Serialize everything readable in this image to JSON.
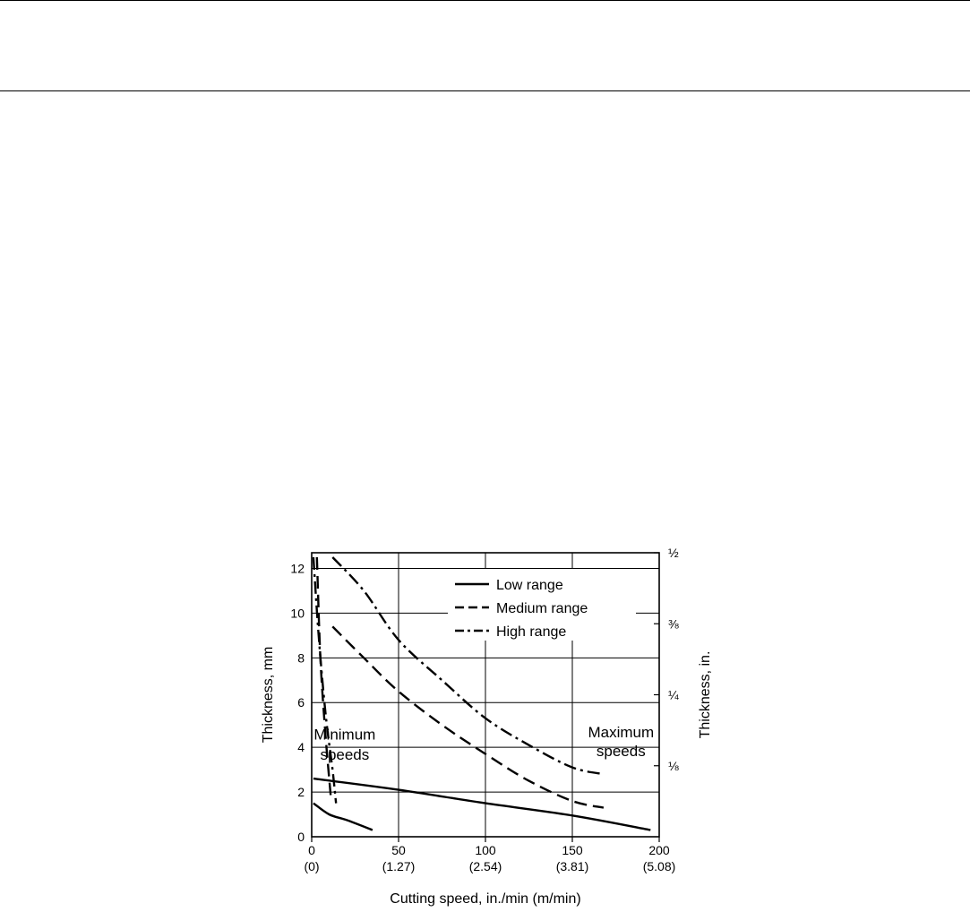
{
  "chart_data": {
    "type": "line",
    "title": "",
    "xlabel": "Cutting speed, in./min (m/min)",
    "ylabel": "Thickness, mm",
    "y2label": "Thickness, in.",
    "xlim": [
      0,
      200
    ],
    "ylim": [
      0,
      12.7
    ],
    "grid": true,
    "legend_position": "top-right",
    "x_ticks": [
      {
        "value": 0,
        "label": "0",
        "sublabel": "(0)"
      },
      {
        "value": 50,
        "label": "50",
        "sublabel": "(1.27)"
      },
      {
        "value": 100,
        "label": "100",
        "sublabel": "(2.54)"
      },
      {
        "value": 150,
        "label": "150",
        "sublabel": "(3.81)"
      },
      {
        "value": 200,
        "label": "200",
        "sublabel": "(5.08)"
      }
    ],
    "y_ticks": [
      {
        "value": 0,
        "label": "0"
      },
      {
        "value": 2,
        "label": "2"
      },
      {
        "value": 4,
        "label": "4"
      },
      {
        "value": 6,
        "label": "6"
      },
      {
        "value": 8,
        "label": "8"
      },
      {
        "value": 10,
        "label": "10"
      },
      {
        "value": 12,
        "label": "12"
      }
    ],
    "y2_ticks": [
      {
        "value": 3.175,
        "label": "⅛"
      },
      {
        "value": 6.35,
        "label": "¼"
      },
      {
        "value": 9.525,
        "label": "⅜"
      },
      {
        "value": 12.7,
        "label": "½"
      }
    ],
    "series": [
      {
        "name": "Low range",
        "dash": "solid",
        "curves": [
          {
            "role": "minimum",
            "points": [
              [
                1,
                1.5
              ],
              [
                10,
                1.0
              ],
              [
                20,
                0.75
              ],
              [
                35,
                0.3
              ]
            ]
          },
          {
            "role": "maximum",
            "points": [
              [
                1,
                2.6
              ],
              [
                50,
                2.1
              ],
              [
                100,
                1.5
              ],
              [
                150,
                0.95
              ],
              [
                195,
                0.3
              ]
            ]
          }
        ]
      },
      {
        "name": "Medium range",
        "dash": "dashed",
        "curves": [
          {
            "role": "minimum",
            "points": [
              [
                3,
                12.5
              ],
              [
                5,
                8.0
              ],
              [
                8,
                4.5
              ],
              [
                11,
                1.8
              ]
            ]
          },
          {
            "role": "maximum",
            "points": [
              [
                12,
                9.4
              ],
              [
                30,
                8.0
              ],
              [
                50,
                6.5
              ],
              [
                75,
                5.0
              ],
              [
                100,
                3.7
              ],
              [
                125,
                2.5
              ],
              [
                150,
                1.6
              ],
              [
                168,
                1.3
              ]
            ]
          }
        ]
      },
      {
        "name": "High range",
        "dash": "dash-dot",
        "curves": [
          {
            "role": "minimum",
            "points": [
              [
                1,
                12.5
              ],
              [
                4,
                9.0
              ],
              [
                8,
                5.5
              ],
              [
                12,
                3.0
              ],
              [
                14,
                1.5
              ]
            ]
          },
          {
            "role": "maximum",
            "points": [
              [
                12,
                12.5
              ],
              [
                30,
                11.0
              ],
              [
                50,
                8.8
              ],
              [
                75,
                7.0
              ],
              [
                100,
                5.3
              ],
              [
                125,
                4.1
              ],
              [
                150,
                3.1
              ],
              [
                168,
                2.8
              ]
            ]
          }
        ]
      }
    ],
    "annotations": [
      {
        "text": "Minimum",
        "x": 19,
        "y": 4.35
      },
      {
        "text": "speeds",
        "x": 19,
        "y": 3.45
      },
      {
        "text": "Maximum",
        "x": 178,
        "y": 4.45
      },
      {
        "text": "speeds",
        "x": 178,
        "y": 3.6
      }
    ]
  }
}
